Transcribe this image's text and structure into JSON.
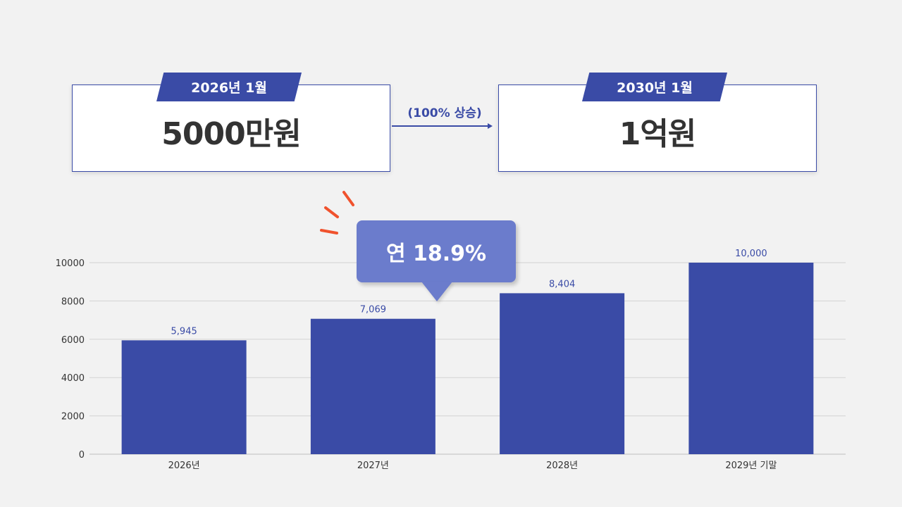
{
  "comparison": {
    "start": {
      "date": "2026년 1월",
      "amount": "5000만원"
    },
    "end": {
      "date": "2030년 1월",
      "amount": "1억원"
    },
    "growth_label": "(100% 상승)"
  },
  "callout": {
    "text": "연 18.9%"
  },
  "colors": {
    "accent": "#3a4ba6",
    "callout": "#6b7ccc",
    "spark": "#f0522d",
    "text": "#333333"
  },
  "chart_data": {
    "type": "bar",
    "categories": [
      "2026년",
      "2027년",
      "2028년",
      "2029년 기말"
    ],
    "values": [
      5945,
      7069,
      8404,
      10000
    ],
    "data_labels": [
      "5,945",
      "7,069",
      "8,404",
      "10,000"
    ],
    "y_ticks": [
      0,
      2000,
      4000,
      6000,
      8000,
      10000
    ],
    "ylim": [
      0,
      10000
    ],
    "grid": true
  }
}
